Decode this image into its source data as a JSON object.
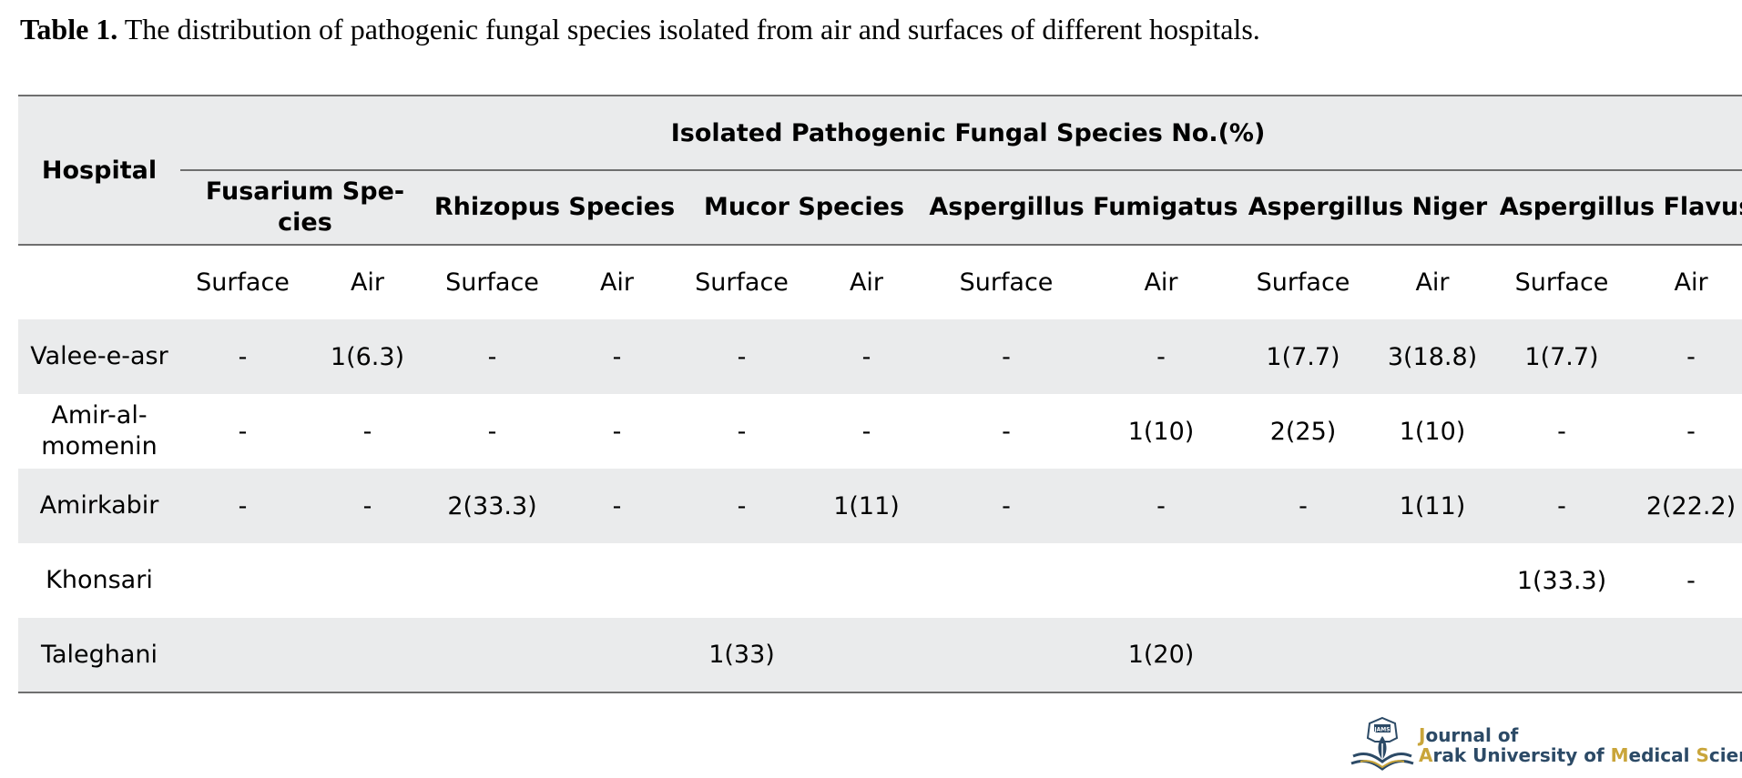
{
  "caption": {
    "label": "Table 1.",
    "text": "The distribution of pathogenic fungal species isolated from air and surfaces of different hospitals."
  },
  "table": {
    "hospital_header": "Hospital",
    "group_header": "Isolated Pathogenic Fungal Species No.(%)",
    "species": [
      "Fusarium Spe-cies",
      "Rhizopus Species",
      "Mucor Species",
      "Aspergillus Fumigatus",
      "Aspergillus Niger",
      "Aspergillus Flavus"
    ],
    "sub_headers": [
      "Surface",
      "Air",
      "Surface",
      "Air",
      "Surface",
      "Air",
      "Surface",
      "Air",
      "Surface",
      "Air",
      "Surface",
      "Air"
    ],
    "rows": [
      {
        "hospital": "Valee-e-asr",
        "cells": [
          "-",
          "1(6.3)",
          "-",
          "-",
          "-",
          "-",
          "-",
          "-",
          "1(7.7)",
          "3(18.8)",
          "1(7.7)",
          "-"
        ]
      },
      {
        "hospital": "Amir-al-momenin",
        "cells": [
          "-",
          "-",
          "-",
          "-",
          "-",
          "-",
          "-",
          "1(10)",
          "2(25)",
          "1(10)",
          "-",
          "-"
        ]
      },
      {
        "hospital": "Amirkabir",
        "cells": [
          "-",
          "-",
          "2(33.3)",
          "-",
          "-",
          "1(11)",
          "-",
          "-",
          "-",
          "1(11)",
          "-",
          "2(22.2)"
        ]
      },
      {
        "hospital": "Khonsari",
        "cells": [
          "",
          "",
          "",
          "",
          "",
          "",
          "",
          "",
          "",
          "",
          "1(33.3)",
          "-"
        ]
      },
      {
        "hospital": "Taleghani",
        "cells": [
          "",
          "",
          "",
          "",
          "1(33)",
          "",
          "",
          "1(20)",
          "",
          "",
          "",
          ""
        ]
      }
    ]
  },
  "logo": {
    "initials": "JAMS",
    "line1_first": "J",
    "line1_rest": "ournal of",
    "line2": [
      "A",
      "rak University of ",
      "M",
      "edical ",
      "S",
      "ciences"
    ]
  },
  "colors": {
    "header_shade": "#eaebec",
    "rule": "#6f6f6f",
    "logo_navy": "#2c4a66",
    "logo_gold": "#c9a53a"
  },
  "icons": [
    "university-emblem-icon"
  ]
}
